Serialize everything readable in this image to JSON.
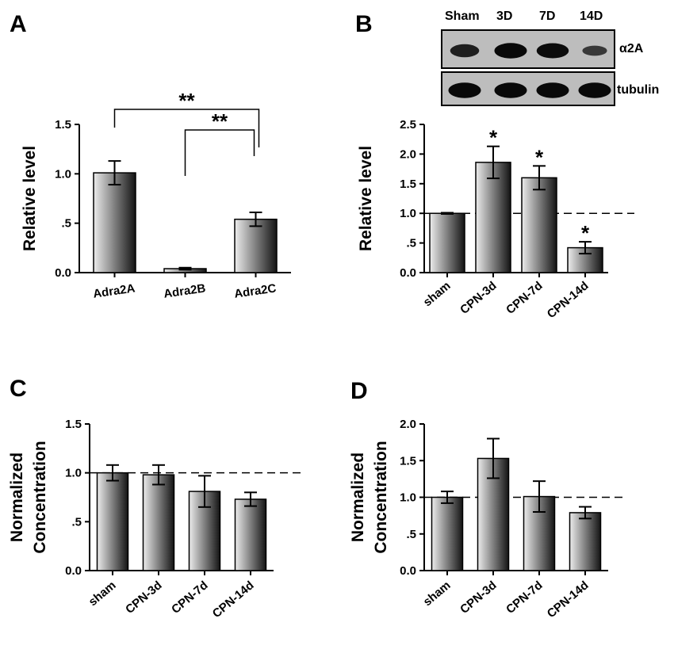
{
  "panels": {
    "A": {
      "letter": "A"
    },
    "B": {
      "letter": "B"
    },
    "C": {
      "letter": "C"
    },
    "D": {
      "letter": "D"
    }
  },
  "blot": {
    "lanes": [
      "Sham",
      "3D",
      "7D",
      "14D"
    ],
    "rows": [
      {
        "label": "α2A",
        "intensity": [
          0.7,
          0.95,
          0.92,
          0.4
        ]
      },
      {
        "label": "tubulin",
        "intensity": [
          0.95,
          0.95,
          0.95,
          0.95
        ]
      }
    ]
  },
  "chart_data": [
    {
      "id": "A",
      "type": "bar",
      "categories": [
        "Adra2A",
        "Adra2B",
        "Adra2C"
      ],
      "values": [
        1.01,
        0.04,
        0.54
      ],
      "errors": [
        0.12,
        0.01,
        0.07
      ],
      "ylabel": "Relative level",
      "ylim": [
        0,
        1.5
      ],
      "yticks": [
        0,
        0.5,
        1.0,
        1.5
      ],
      "ytick_labels": [
        "0.0",
        ".5",
        "1.0",
        "1.5"
      ],
      "tick_rotation": -8,
      "significance": [
        {
          "from": 0,
          "to": 2,
          "label": "**"
        },
        {
          "from": 1,
          "to": 2,
          "label": "**"
        }
      ]
    },
    {
      "id": "B",
      "type": "bar",
      "categories": [
        "sham",
        "CPN-3d",
        "CPN-7d",
        "CPN-14d"
      ],
      "values": [
        1.0,
        1.86,
        1.6,
        0.42
      ],
      "errors": [
        0.01,
        0.27,
        0.2,
        0.1
      ],
      "annotations": [
        "",
        "*",
        "*",
        "*"
      ],
      "ylabel": "Relative level",
      "ylim": [
        0,
        2.5
      ],
      "yticks": [
        0,
        0.5,
        1.0,
        1.5,
        2.0,
        2.5
      ],
      "ytick_labels": [
        "0.0",
        ".5",
        "1.0",
        "1.5",
        "2.0",
        "2.5"
      ],
      "reference_line": 1.0,
      "tick_rotation": -40
    },
    {
      "id": "C",
      "type": "bar",
      "categories": [
        "sham",
        "CPN-3d",
        "CPN-7d",
        "CPN-14d"
      ],
      "values": [
        1.0,
        0.98,
        0.81,
        0.73
      ],
      "errors": [
        0.08,
        0.1,
        0.16,
        0.07
      ],
      "ylabel": [
        "Normalized",
        "Concentration"
      ],
      "ylim": [
        0,
        1.5
      ],
      "yticks": [
        0,
        0.5,
        1.0,
        1.5
      ],
      "ytick_labels": [
        "0.0",
        ".5",
        "1.0",
        "1.5"
      ],
      "reference_line": 1.0,
      "tick_rotation": -40
    },
    {
      "id": "D",
      "type": "bar",
      "categories": [
        "sham",
        "CPN-3d",
        "CPN-7d",
        "CPN-14d"
      ],
      "values": [
        1.0,
        1.53,
        1.01,
        0.79
      ],
      "errors": [
        0.08,
        0.27,
        0.21,
        0.08
      ],
      "ylabel": [
        "Normalized",
        "Concentration"
      ],
      "ylim": [
        0,
        2.0
      ],
      "yticks": [
        0,
        0.5,
        1.0,
        1.5,
        2.0
      ],
      "ytick_labels": [
        "0.0",
        ".5",
        "1.0",
        "1.5",
        "2.0"
      ],
      "reference_line": 1.0,
      "tick_rotation": -40
    }
  ]
}
